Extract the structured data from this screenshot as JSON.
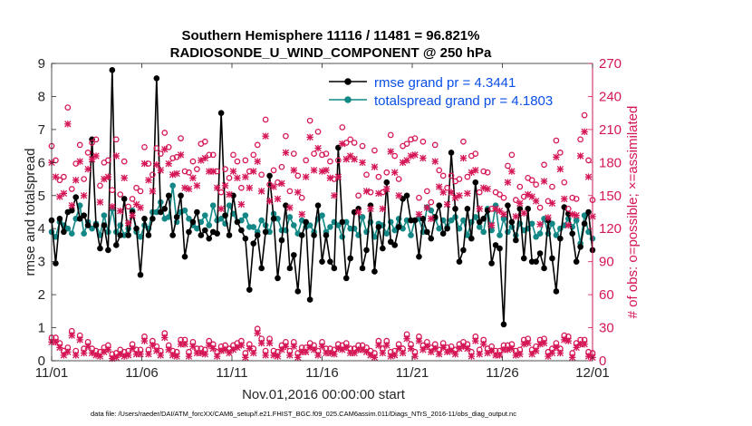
{
  "chart_data": {
    "type": "line",
    "title_line1": "Southern Hemisphere 11116 / 11481 = 96.821%",
    "title_line2": "RADIOSONDE_U_WIND_COMPONENT @ 250 hPa",
    "xlabel": "Nov.01,2016 00:00:00 start",
    "ylabel_left": "rmse and totalspread",
    "ylabel_right": "# of obs: o=possible; ×=assimilated",
    "footer": "data file: /Users/raeder/DAI/ATM_forcXX/CAM6_setup/f.e21.FHIST_BGC.f09_025.CAM6assim.011/Diags_NTrS_2016-11/obs_diag_output.nc",
    "x_tick_labels": [
      "11/01",
      "11/06",
      "11/11",
      "11/16",
      "11/21",
      "11/26",
      "12/01"
    ],
    "x_tick_days": [
      0,
      5,
      10,
      15,
      20,
      25,
      30
    ],
    "xlim": [
      0,
      30
    ],
    "ylim_left": [
      0,
      9
    ],
    "ylim_right": [
      0,
      270
    ],
    "y_ticks_left": [
      "0",
      "1",
      "2",
      "3",
      "4",
      "5",
      "6",
      "7",
      "8",
      "9"
    ],
    "y_ticks_right": [
      "0",
      "30",
      "60",
      "90",
      "120",
      "150",
      "180",
      "210",
      "240",
      "270"
    ],
    "colors": {
      "rmse": "#000000",
      "spread": "#138886",
      "obs": "#d51655",
      "legend_text": "#0a4fe6",
      "right_axis": "#d51655"
    },
    "series": [
      {
        "name": "rmse grand pr = 4.3441",
        "axis": "left",
        "values": [
          4.25,
          2.95,
          4.3,
          3.9,
          4.5,
          4.55,
          4.95,
          4.3,
          4.4,
          4.1,
          6.7,
          4.1,
          3.4,
          4.1,
          3.35,
          8.8,
          3.5,
          3.8,
          4.9,
          3.8,
          4.5,
          4.0,
          2.6,
          4.3,
          3.8,
          4.3,
          8.55,
          4.5,
          4.6,
          5.0,
          3.8,
          4.35,
          5.0,
          3.15,
          3.9,
          4.2,
          4.5,
          3.8,
          3.95,
          3.7,
          3.9,
          3.85,
          7.5,
          4.4,
          3.8,
          5.0,
          4.2,
          3.95,
          3.7,
          2.15,
          3.55,
          3.8,
          2.8,
          3.9,
          5.6,
          4.3,
          2.5,
          3.65,
          4.7,
          2.8,
          3.2,
          2.1,
          3.8,
          4.2,
          1.85,
          3.8,
          4.7,
          3.0,
          3.8,
          3.0,
          2.8,
          6.45,
          4.2,
          2.5,
          3.1,
          4.5,
          4.6,
          2.8,
          3.35,
          4.7,
          2.7,
          4.05,
          3.4,
          5.4,
          3.6,
          3.5,
          4.05,
          4.9,
          5.0,
          4.25,
          4.25,
          3.15,
          4.3,
          3.9,
          3.7,
          4.35,
          4.7,
          3.85,
          4.0,
          6.3,
          4.6,
          3.0,
          3.35,
          4.6,
          3.7,
          5.4,
          4.2,
          4.3,
          4.55,
          2.95,
          3.5,
          3.4,
          1.1,
          4.7,
          4.2,
          3.65,
          4.6,
          3.1,
          4.6,
          3.0,
          3.0,
          3.25,
          2.8,
          4.25,
          3.1,
          2.1,
          3.7,
          4.65,
          4.45,
          3.85,
          3.0,
          3.45,
          4.15,
          4.5,
          3.35
        ]
      },
      {
        "name": "totalspread grand pr = 4.1803",
        "axis": "left",
        "values": [
          3.9,
          3.75,
          4.2,
          4.1,
          4.0,
          3.85,
          4.3,
          4.7,
          3.85,
          4.2,
          4.0,
          4.15,
          3.8,
          4.4,
          3.9,
          4.6,
          3.9,
          4.1,
          3.8,
          4.0,
          4.55,
          3.9,
          3.75,
          4.1,
          4.0,
          4.5,
          4.5,
          4.8,
          4.3,
          4.35,
          5.3,
          4.2,
          4.5,
          4.55,
          4.3,
          4.1,
          4.0,
          4.2,
          4.4,
          4.1,
          4.7,
          4.25,
          4.3,
          4.15,
          4.7,
          4.45,
          4.2,
          4.25,
          4.4,
          4.05,
          4.05,
          3.9,
          4.25,
          4.1,
          3.9,
          4.45,
          4.3,
          3.95,
          3.95,
          4.35,
          4.1,
          3.85,
          4.25,
          4.05,
          4.1,
          3.9,
          4.3,
          4.4,
          3.9,
          4.05,
          4.2,
          4.1,
          3.75,
          4.2,
          4.0,
          4.0,
          3.8,
          4.35,
          3.9,
          4.2,
          3.75,
          4.15,
          4.1,
          3.85,
          4.2,
          3.95,
          4.3,
          4.0,
          4.25,
          3.8,
          4.25,
          4.3,
          3.9,
          4.65,
          4.55,
          4.3,
          4.0,
          4.25,
          4.05,
          4.25,
          4.35,
          4.0,
          4.25,
          3.8,
          4.2,
          4.35,
          4.05,
          3.9,
          4.6,
          3.95,
          4.7,
          3.8,
          4.3,
          3.9,
          4.05,
          3.8,
          4.15,
          3.95,
          4.0,
          4.15,
          3.75,
          3.85,
          4.3,
          3.85,
          4.15,
          3.8,
          4.0,
          4.1,
          4.3,
          4.05,
          4.25,
          3.55,
          4.4,
          3.9,
          3.7
        ]
      }
    ],
    "obs_possible": {
      "axis": "right",
      "values": [
        17,
        17,
        12,
        5,
        8,
        23,
        5,
        19,
        7,
        13,
        7,
        5,
        4,
        8,
        10,
        2,
        3,
        6,
        4,
        5,
        11,
        6,
        6,
        18,
        6,
        14,
        9,
        5,
        21,
        10,
        5,
        4,
        15,
        15,
        4,
        13,
        7,
        7,
        6,
        14,
        11,
        4,
        9,
        10,
        7,
        10,
        12,
        14,
        3,
        11,
        7,
        25,
        16,
        5,
        16,
        5,
        4,
        10,
        13,
        5,
        13,
        3,
        8,
        8,
        12,
        10,
        5,
        13,
        7,
        7,
        6,
        11,
        10,
        12,
        7,
        7,
        10,
        10,
        8,
        5,
        3,
        14,
        7,
        14,
        4,
        5,
        11,
        7,
        20,
        11,
        4,
        18,
        10,
        13,
        8,
        11,
        6,
        12,
        8,
        9,
        6,
        11,
        13,
        11,
        4,
        18,
        6,
        15,
        7,
        9,
        5,
        5,
        10,
        10,
        11,
        5,
        6,
        15,
        16,
        6,
        9,
        15,
        16,
        4,
        7,
        12,
        7,
        19,
        18,
        3,
        12,
        15,
        15,
        4,
        3
      ]
    },
    "obs_assimilated": {
      "axis": "right",
      "values": [
        180,
        167,
        149,
        152,
        215,
        141,
        164,
        181,
        150,
        174,
        183,
        186,
        144,
        165,
        167,
        140,
        186,
        136,
        166,
        125,
        132,
        142,
        139,
        179,
        164,
        154,
        178,
        173,
        192,
        179,
        169,
        170,
        187,
        157,
        156,
        166,
        159,
        182,
        184,
        172,
        172,
        157,
        138,
        159,
        151,
        172,
        166,
        142,
        167,
        157,
        172,
        181,
        154,
        204,
        145,
        158,
        147,
        161,
        189,
        139,
        173,
        153,
        133,
        167,
        203,
        173,
        193,
        172,
        173,
        166,
        150,
        167,
        197,
        183,
        186,
        183,
        135,
        180,
        154,
        138,
        176,
        152,
        138,
        156,
        190,
        171,
        150,
        180,
        182,
        186,
        187,
        133,
        184,
        139,
        129,
        181,
        158,
        153,
        142,
        153,
        148,
        150,
        184,
        152,
        171,
        173,
        138,
        157,
        156,
        123,
        138,
        136,
        133,
        162,
        172,
        131,
        143,
        134,
        151,
        149,
        145,
        124,
        163,
        130,
        143,
        185,
        174,
        147,
        123,
        133,
        132,
        186,
        208,
        167,
        131
      ]
    }
  }
}
